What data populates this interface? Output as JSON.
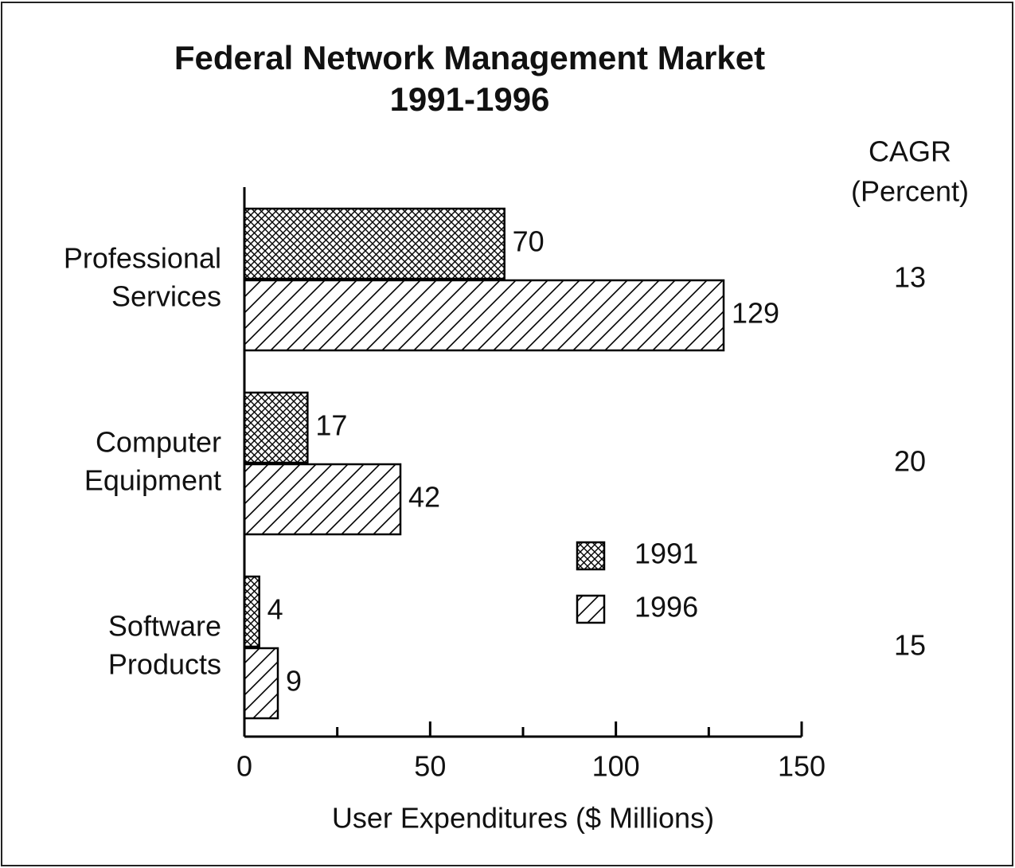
{
  "chart_data": {
    "type": "hbar",
    "title": "Federal Network Management Market",
    "subtitle": "1991-1996",
    "categories": [
      [
        "Professional",
        "Services"
      ],
      [
        "Computer",
        "Equipment"
      ],
      [
        "Software",
        "Products"
      ]
    ],
    "series": [
      {
        "name": "1991",
        "color": "#000000",
        "pattern": "crosshatch",
        "values": [
          70,
          17,
          4
        ]
      },
      {
        "name": "1996",
        "color": "#000000",
        "pattern": "diagonal",
        "values": [
          129,
          42,
          9
        ]
      }
    ],
    "xlim": [
      0,
      150
    ],
    "xticks": [
      0,
      50,
      100,
      150
    ],
    "xminor_ticks": [
      25,
      75,
      125
    ],
    "xlabel": "User Expenditures ($ Millions)",
    "legend": "center",
    "cagr": {
      "title": [
        "CAGR",
        "(Percent)"
      ],
      "values": [
        13,
        20,
        15
      ]
    }
  }
}
